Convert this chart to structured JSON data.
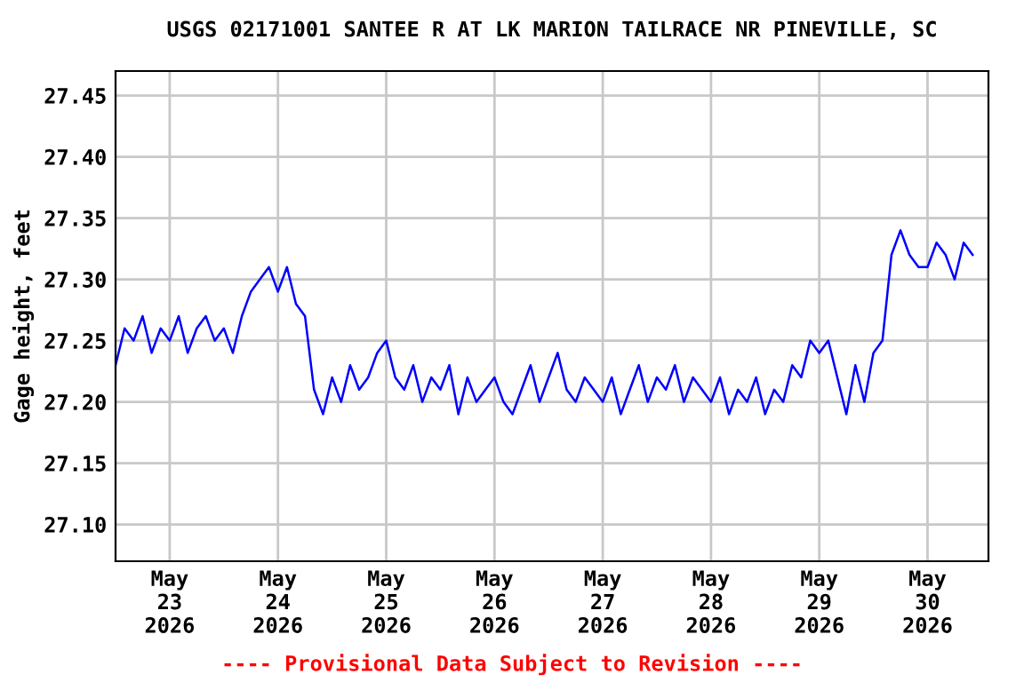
{
  "chart_data": {
    "type": "line",
    "title": "USGS 02171001 SANTEE R AT LK MARION TAILRACE NR PINEVILLE, SC",
    "ylabel": "Gage height, feet",
    "annotations": [
      "---- Provisional Data Subject to Revision ----"
    ],
    "x": [
      "2026-05-22T12:00",
      "2026-05-22T14:00",
      "2026-05-22T16:00",
      "2026-05-22T18:00",
      "2026-05-22T20:00",
      "2026-05-22T22:00",
      "2026-05-23T00:00",
      "2026-05-23T02:00",
      "2026-05-23T04:00",
      "2026-05-23T06:00",
      "2026-05-23T08:00",
      "2026-05-23T10:00",
      "2026-05-23T12:00",
      "2026-05-23T14:00",
      "2026-05-23T16:00",
      "2026-05-23T18:00",
      "2026-05-23T20:00",
      "2026-05-23T22:00",
      "2026-05-24T00:00",
      "2026-05-24T02:00",
      "2026-05-24T04:00",
      "2026-05-24T06:00",
      "2026-05-24T08:00",
      "2026-05-24T10:00",
      "2026-05-24T12:00",
      "2026-05-24T14:00",
      "2026-05-24T16:00",
      "2026-05-24T18:00",
      "2026-05-24T20:00",
      "2026-05-24T22:00",
      "2026-05-25T00:00",
      "2026-05-25T02:00",
      "2026-05-25T04:00",
      "2026-05-25T06:00",
      "2026-05-25T08:00",
      "2026-05-25T10:00",
      "2026-05-25T12:00",
      "2026-05-25T14:00",
      "2026-05-25T16:00",
      "2026-05-25T18:00",
      "2026-05-25T20:00",
      "2026-05-25T22:00",
      "2026-05-26T00:00",
      "2026-05-26T02:00",
      "2026-05-26T04:00",
      "2026-05-26T06:00",
      "2026-05-26T08:00",
      "2026-05-26T10:00",
      "2026-05-26T12:00",
      "2026-05-26T14:00",
      "2026-05-26T16:00",
      "2026-05-26T18:00",
      "2026-05-26T20:00",
      "2026-05-26T22:00",
      "2026-05-27T00:00",
      "2026-05-27T02:00",
      "2026-05-27T04:00",
      "2026-05-27T06:00",
      "2026-05-27T08:00",
      "2026-05-27T10:00",
      "2026-05-27T12:00",
      "2026-05-27T14:00",
      "2026-05-27T16:00",
      "2026-05-27T18:00",
      "2026-05-27T20:00",
      "2026-05-27T22:00",
      "2026-05-28T00:00",
      "2026-05-28T02:00",
      "2026-05-28T04:00",
      "2026-05-28T06:00",
      "2026-05-28T08:00",
      "2026-05-28T10:00",
      "2026-05-28T12:00",
      "2026-05-28T14:00",
      "2026-05-28T16:00",
      "2026-05-28T18:00",
      "2026-05-28T20:00",
      "2026-05-28T22:00",
      "2026-05-29T00:00",
      "2026-05-29T02:00",
      "2026-05-29T04:00",
      "2026-05-29T06:00",
      "2026-05-29T08:00",
      "2026-05-29T10:00",
      "2026-05-29T12:00",
      "2026-05-29T14:00",
      "2026-05-29T16:00",
      "2026-05-29T18:00",
      "2026-05-29T20:00",
      "2026-05-29T22:00",
      "2026-05-30T00:00",
      "2026-05-30T02:00",
      "2026-05-30T04:00",
      "2026-05-30T06:00",
      "2026-05-30T08:00",
      "2026-05-30T10:00"
    ],
    "series": [
      {
        "color": "#0000ff",
        "values": [
          27.23,
          27.26,
          27.25,
          27.27,
          27.24,
          27.26,
          27.25,
          27.27,
          27.24,
          27.26,
          27.27,
          27.25,
          27.26,
          27.24,
          27.27,
          27.29,
          27.3,
          27.31,
          27.29,
          27.31,
          27.28,
          27.27,
          27.21,
          27.19,
          27.22,
          27.2,
          27.23,
          27.21,
          27.22,
          27.24,
          27.25,
          27.22,
          27.21,
          27.23,
          27.2,
          27.22,
          27.21,
          27.23,
          27.19,
          27.22,
          27.2,
          27.21,
          27.22,
          27.2,
          27.19,
          27.21,
          27.23,
          27.2,
          27.22,
          27.24,
          27.21,
          27.2,
          27.22,
          27.21,
          27.2,
          27.22,
          27.19,
          27.21,
          27.23,
          27.2,
          27.22,
          27.21,
          27.23,
          27.2,
          27.22,
          27.21,
          27.2,
          27.22,
          27.19,
          27.21,
          27.2,
          27.22,
          27.19,
          27.21,
          27.2,
          27.23,
          27.22,
          27.25,
          27.24,
          27.25,
          27.22,
          27.19,
          27.23,
          27.2,
          27.24,
          27.25,
          27.32,
          27.34,
          27.32,
          27.31,
          27.31,
          27.33,
          27.32,
          27.3,
          27.33,
          27.32
        ]
      }
    ],
    "xlim": [
      "2026-05-22T12:00",
      "2026-05-30T13:30"
    ],
    "xticks": [
      {
        "value": "2026-05-23",
        "label": "May\n23\n2026"
      },
      {
        "value": "2026-05-24",
        "label": "May\n24\n2026"
      },
      {
        "value": "2026-05-25",
        "label": "May\n25\n2026"
      },
      {
        "value": "2026-05-26",
        "label": "May\n26\n2026"
      },
      {
        "value": "2026-05-27",
        "label": "May\n27\n2026"
      },
      {
        "value": "2026-05-28",
        "label": "May\n28\n2026"
      },
      {
        "value": "2026-05-29",
        "label": "May\n29\n2026"
      },
      {
        "value": "2026-05-30",
        "label": "May\n30\n2026"
      }
    ],
    "ylim": [
      27.07,
      27.47
    ],
    "yticks": [
      {
        "value": 27.1,
        "label": "27.10"
      },
      27.15,
      {
        "value": 27.2,
        "label": "27.20"
      },
      27.25,
      {
        "value": 27.3,
        "label": "27.30"
      },
      27.35,
      {
        "value": 27.4,
        "label": "27.40"
      },
      27.45
    ],
    "grid": true,
    "marker": "none",
    "line_style": "solid"
  }
}
